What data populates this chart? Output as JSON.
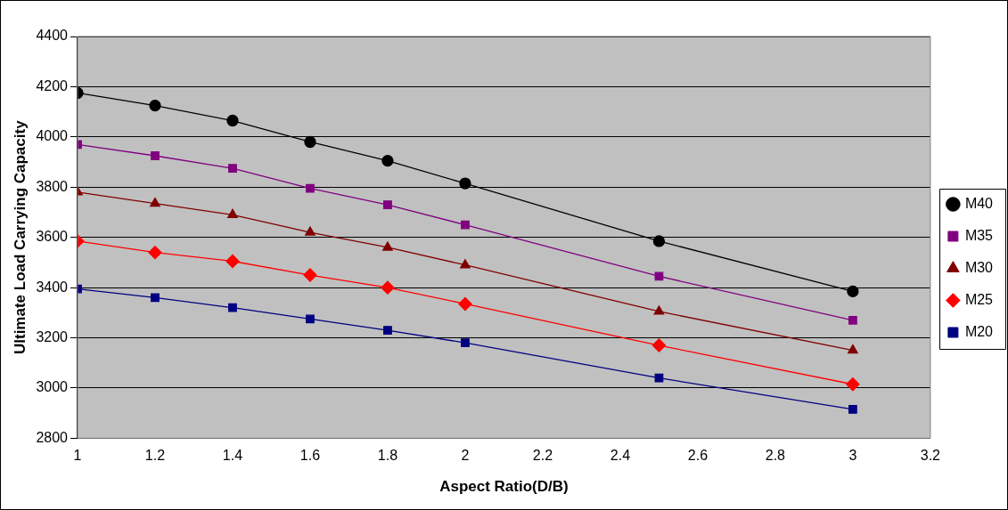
{
  "chart_data": {
    "type": "line",
    "xlabel": "Aspect Ratio(D/B)",
    "ylabel": "Ultimate Load Carrying Capacity",
    "x": [
      1,
      1.2,
      1.4,
      1.6,
      1.8,
      2,
      2.5,
      3
    ],
    "xlim": [
      1,
      3.2
    ],
    "xticks": [
      1,
      1.2,
      1.4,
      1.6,
      1.8,
      2,
      2.2,
      2.4,
      2.6,
      2.8,
      3,
      3.2
    ],
    "ylim": [
      2800,
      4400
    ],
    "yticks": [
      2800,
      3000,
      3200,
      3400,
      3600,
      3800,
      4000,
      4200,
      4400
    ],
    "grid": "y",
    "legend": "right",
    "line_style": "solid",
    "series": [
      {
        "name": "M40",
        "color": "#000000",
        "marker": "circle",
        "values": [
          4175,
          4125,
          4065,
          3980,
          3905,
          3815,
          3585,
          3385
        ]
      },
      {
        "name": "M35",
        "color": "#800080",
        "marker": "square",
        "values": [
          3970,
          3925,
          3875,
          3795,
          3730,
          3650,
          3445,
          3270
        ]
      },
      {
        "name": "M30",
        "color": "#800000",
        "marker": "triangle",
        "values": [
          3780,
          3735,
          3690,
          3620,
          3560,
          3490,
          3305,
          3150
        ]
      },
      {
        "name": "M25",
        "color": "#ff0000",
        "marker": "diamond",
        "values": [
          3585,
          3540,
          3505,
          3450,
          3400,
          3335,
          3170,
          3015
        ]
      },
      {
        "name": "M20",
        "color": "#000080",
        "marker": "square",
        "values": [
          3395,
          3360,
          3320,
          3275,
          3230,
          3180,
          3040,
          2915
        ]
      }
    ]
  }
}
